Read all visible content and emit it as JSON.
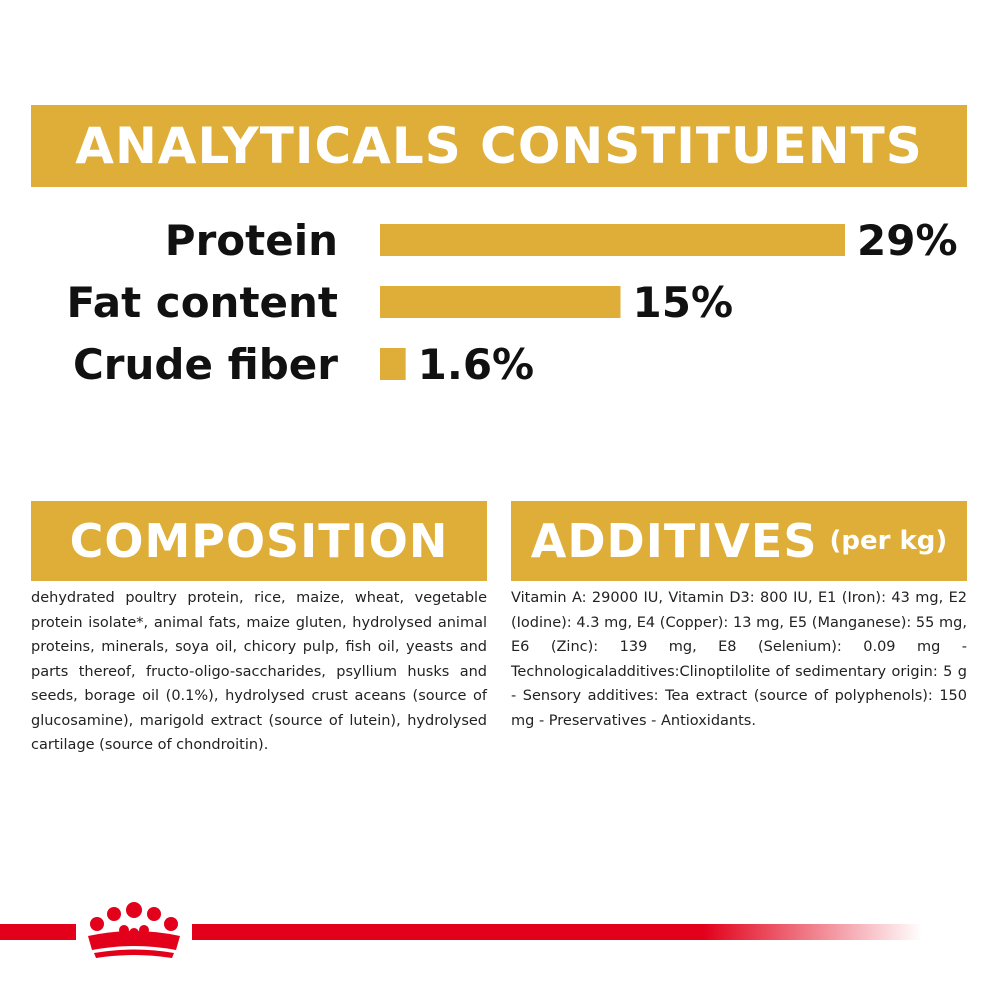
{
  "header": {
    "title": "ANALYTICALS CONSTITUENTS"
  },
  "chart_data": {
    "type": "bar",
    "orientation": "horizontal",
    "categories": [
      "Protein",
      "Fat content",
      "Crude fiber"
    ],
    "values": [
      29,
      15,
      1.6
    ],
    "value_labels": [
      "29%",
      "15%",
      "1.6%"
    ],
    "unit": "%",
    "xlim": [
      0,
      29
    ],
    "grid": false,
    "legend": "none",
    "bar_color": "#deae38"
  },
  "composition": {
    "title": "COMPOSITION",
    "text": "dehydrated poultry protein, rice, maize, wheat, vegetable protein isolate*, animal fats, maize gluten, hydrolysed animal proteins, minerals, soya oil, chicory pulp, fish oil, yeasts and parts thereof, fructo-oligo-saccharides, psyllium husks and seeds, borage oil (0.1%), hydrolysed crust aceans (source of glucosamine), marigold extract (source of lutein), hydrolysed cartilage (source of chondroitin)."
  },
  "additives": {
    "title": "ADDITIVES",
    "subtitle": "(per kg)",
    "text": "Vitamin A: 29000 IU, Vitamin D3: 800 IU, E1 (Iron): 43 mg, E2 (Iodine): 4.3 mg, E4 (Copper): 13 mg, E5 (Manganese): 55 mg, E6 (Zinc): 139 mg, E8 (Selenium): 0.09 mg - Technologicaladditives:Clinoptilolite of sedimentary origin: 5 g - Sensory additives: Tea extract (source of polyphenols): 150 mg - Preservatives - Antioxidants."
  },
  "colors": {
    "accent": "#deae38",
    "brand_red": "#e2001a"
  },
  "footer": {
    "logo": "crown-icon"
  }
}
